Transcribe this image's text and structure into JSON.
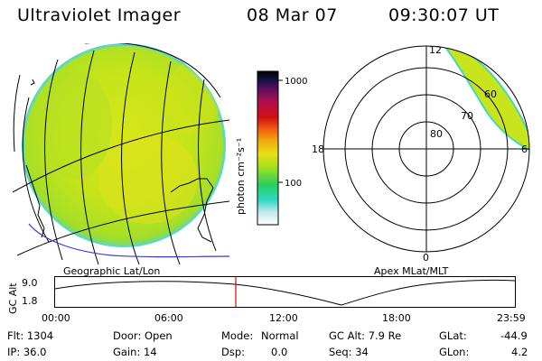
{
  "header": {
    "instrument": "Ultraviolet Imager",
    "date": "08 Mar 07",
    "time": "09:30:07 UT"
  },
  "colorbar": {
    "unit_label": "photon cm⁻²s⁻¹",
    "tick_1000": "1000",
    "tick_100": "100"
  },
  "projections": {
    "left_label": "Geographic Lat/Lon",
    "right_label": "Apex MLat/MLT"
  },
  "polar": {
    "mlt_12": "12",
    "mlt_18": "18",
    "mlt_6": "6",
    "mlt_0": "0",
    "lat_80": "80",
    "lat_70": "70",
    "lat_60": "60"
  },
  "altitude_plot": {
    "axis_label": "GC Alt",
    "y_ticks": [
      "9.0",
      "1.8"
    ],
    "x_ticks": [
      "00:00",
      "06:00",
      "12:00",
      "18:00",
      "23:59"
    ],
    "current_time_marker_color": "#e00000"
  },
  "status": {
    "flt": "Flt: 1304",
    "ip": "IP: 36.0",
    "door": "Door: Open",
    "gain": "Gain: 14",
    "mode_label": "Mode:",
    "mode_value": "Normal",
    "dsp_label": "Dsp:",
    "dsp_value": "0.0",
    "gc_alt": "GC Alt: 7.9 Re",
    "seq": "Seq: 34",
    "glat_label": "GLat:",
    "glat_value": "-44.9",
    "glon_label": "GLon:",
    "glon_value": "4.2"
  },
  "colors": {
    "aurora_base": "#bde61a",
    "aurora_edge": "#3fd6c8",
    "time_marker": "#e00000",
    "coast_blue": "#3a3ad0"
  }
}
